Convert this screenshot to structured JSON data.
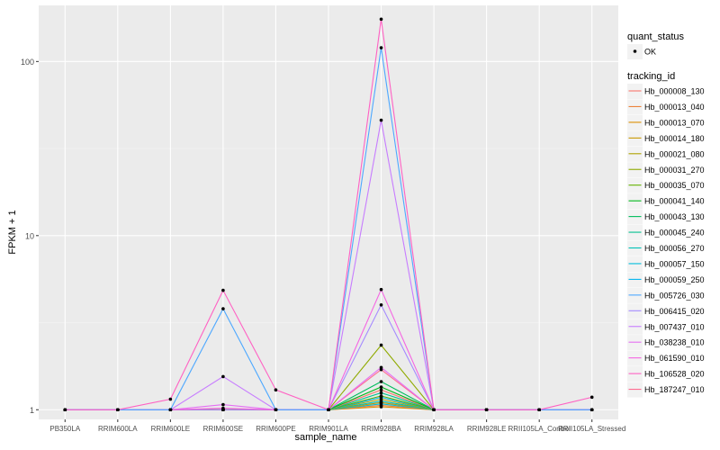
{
  "chart_data": {
    "type": "line",
    "xlabel": "sample_name",
    "ylabel": "FPKM + 1",
    "y_scale": "log10",
    "ylim": [
      0.88,
      210
    ],
    "y_ticks": [
      1,
      10,
      100
    ],
    "y_tick_labels": [
      "1",
      "10",
      "100"
    ],
    "grid": true,
    "legend_position": "right",
    "categories": [
      "PB350LA",
      "RRIM600LA",
      "RRIM600LE",
      "RRIM600SE",
      "RRIM600PE",
      "RRIM901LA",
      "RRIM928BA",
      "RRIM928LA",
      "RRIM928LE",
      "RRII105LA_Control",
      "RRII105LA_Stressed"
    ],
    "point_legend": {
      "title": "quant_status",
      "entries": [
        "OK"
      ]
    },
    "line_legend_title": "tracking_id",
    "series": [
      {
        "name": "Hb_000008_130",
        "color": "#F8766D",
        "values": [
          1,
          1,
          1,
          1,
          1,
          1,
          1.3,
          1,
          1,
          1,
          1
        ]
      },
      {
        "name": "Hb_000013_040",
        "color": "#EC8239",
        "values": [
          1,
          1,
          1,
          1,
          1,
          1,
          1.06,
          1,
          1,
          1,
          1
        ]
      },
      {
        "name": "Hb_000013_070",
        "color": "#DB8E00",
        "values": [
          1,
          1,
          1,
          1,
          1,
          1,
          1.04,
          1,
          1,
          1,
          1
        ]
      },
      {
        "name": "Hb_000014_180",
        "color": "#C79800",
        "values": [
          1,
          1,
          1,
          1,
          1,
          1,
          1.1,
          1,
          1,
          1,
          1
        ]
      },
      {
        "name": "Hb_000021_080",
        "color": "#AEA200",
        "values": [
          1,
          1,
          1,
          1,
          1,
          1,
          1.15,
          1,
          1,
          1,
          1
        ]
      },
      {
        "name": "Hb_000031_270",
        "color": "#8FAA00",
        "values": [
          1,
          1,
          1,
          1,
          1,
          1,
          2.35,
          1,
          1,
          1,
          1
        ]
      },
      {
        "name": "Hb_000035_070",
        "color": "#64B200",
        "values": [
          1,
          1,
          1,
          1,
          1,
          1,
          1.2,
          1,
          1,
          1,
          1
        ]
      },
      {
        "name": "Hb_000041_140",
        "color": "#00B81B",
        "values": [
          1,
          1,
          1,
          1,
          1,
          1,
          1.35,
          1,
          1,
          1,
          1
        ]
      },
      {
        "name": "Hb_000043_130",
        "color": "#00BD5C",
        "values": [
          1,
          1,
          1,
          1,
          1,
          1,
          1.45,
          1,
          1,
          1,
          1
        ]
      },
      {
        "name": "Hb_000045_240",
        "color": "#00C08E",
        "values": [
          1,
          1,
          1,
          1,
          1,
          1,
          1.25,
          1,
          1,
          1,
          1
        ]
      },
      {
        "name": "Hb_000056_270",
        "color": "#00C1B7",
        "values": [
          1,
          1,
          1,
          1,
          1,
          1,
          1.12,
          1,
          1,
          1,
          1
        ]
      },
      {
        "name": "Hb_000057_150",
        "color": "#00BDDC",
        "values": [
          1,
          1,
          1,
          1,
          1,
          1,
          1.08,
          1,
          1,
          1,
          1
        ]
      },
      {
        "name": "Hb_000059_250",
        "color": "#00B4EF",
        "values": [
          1,
          1,
          1,
          1,
          1,
          1,
          1.18,
          1,
          1,
          1,
          1
        ]
      },
      {
        "name": "Hb_005726_030",
        "color": "#4DA8FF",
        "values": [
          1,
          1,
          1,
          3.8,
          1,
          1,
          120,
          1,
          1,
          1,
          1
        ]
      },
      {
        "name": "Hb_006415_020",
        "color": "#A58AFF",
        "values": [
          1,
          1,
          1,
          1,
          1,
          1,
          4,
          1,
          1,
          1,
          1
        ]
      },
      {
        "name": "Hb_007437_010",
        "color": "#C77CFF",
        "values": [
          1,
          1,
          1,
          1.55,
          1,
          1,
          46,
          1,
          1,
          1,
          1
        ]
      },
      {
        "name": "Hb_038238_010",
        "color": "#E56FF3",
        "values": [
          1,
          1,
          1,
          1.07,
          1,
          1,
          1.75,
          1,
          1,
          1,
          1
        ]
      },
      {
        "name": "Hb_061590_010",
        "color": "#F564E3",
        "values": [
          1,
          1,
          1,
          1.02,
          1,
          1,
          4.9,
          1,
          1,
          1,
          1
        ]
      },
      {
        "name": "Hb_106528_020",
        "color": "#FF61C3",
        "values": [
          1,
          1,
          1.15,
          4.85,
          1.3,
          1,
          175,
          1,
          1,
          1,
          1.18
        ]
      },
      {
        "name": "Hb_187247_010",
        "color": "#FF6C91",
        "values": [
          1,
          1,
          1,
          1,
          1,
          1,
          1.7,
          1,
          1,
          1,
          1
        ]
      }
    ]
  }
}
